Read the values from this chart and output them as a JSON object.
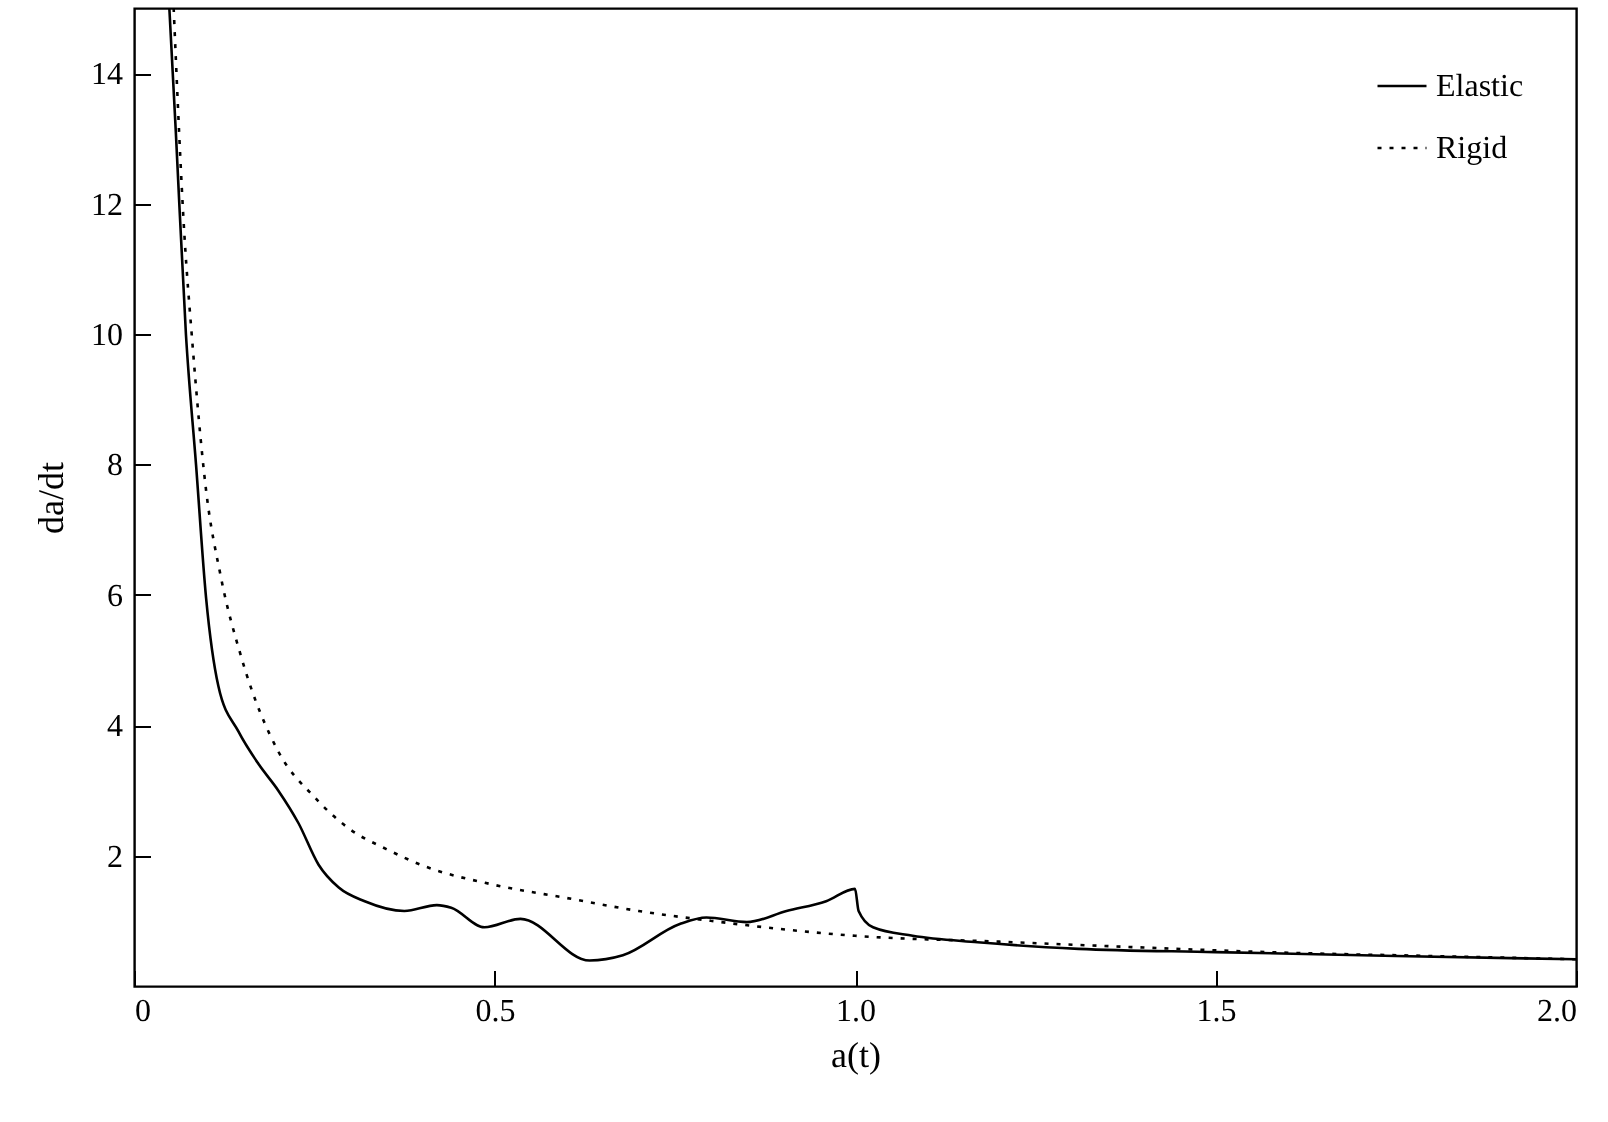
{
  "chart_data": {
    "type": "line",
    "xlabel": "a(t)",
    "ylabel": "da/dt",
    "xlim": [
      0,
      2
    ],
    "ylim": [
      0,
      15
    ],
    "xticks": [
      0,
      0.5,
      {
        "value": 1,
        "label": "1.0"
      },
      1.5,
      {
        "value": 2,
        "label": "2.0"
      }
    ],
    "yticks": [
      2,
      4,
      6,
      8,
      10,
      12,
      14
    ],
    "legend": "top right",
    "grid": false,
    "series": [
      {
        "name": "Elastic",
        "color": "#000000",
        "line_style": "solid",
        "x": [
          0.049,
          0.058,
          0.072,
          0.086,
          0.1,
          0.117,
          0.145,
          0.173,
          0.2,
          0.228,
          0.256,
          0.284,
          0.32,
          0.375,
          0.42,
          0.44,
          0.486,
          0.536,
          0.632,
          0.678,
          0.757,
          0.794,
          0.85,
          0.905,
          0.96,
          1.0,
          1.005,
          1.025,
          1.08,
          1.17,
          1.31,
          1.5,
          1.75,
          2.0
        ],
        "values": [
          15,
          13.1,
          10,
          8,
          5.95,
          4.6,
          3.9,
          3.4,
          3,
          2.5,
          1.86,
          1.51,
          1.3,
          1.15,
          1.24,
          1.2,
          0.9,
          1.03,
          0.39,
          0.47,
          0.95,
          1.05,
          0.98,
          1.15,
          1.3,
          1.49,
          1.15,
          0.9,
          0.77,
          0.67,
          0.57,
          0.52,
          0.46,
          0.41
        ]
      },
      {
        "name": "Rigid",
        "color": "#000000",
        "line_style": "dotted",
        "x": [
          0.055,
          0.07,
          0.08,
          0.1,
          0.12,
          0.15,
          0.2,
          0.25,
          0.3,
          0.35,
          0.4,
          0.5,
          0.6,
          0.7,
          0.8,
          0.9,
          1.0,
          1.2,
          1.4,
          1.6,
          1.8,
          2.0
        ],
        "values": [
          15,
          11.5,
          10,
          7.6,
          6.3,
          5,
          3.6,
          2.9,
          2.4,
          2.1,
          1.85,
          1.55,
          1.35,
          1.15,
          1,
          0.87,
          0.77,
          0.68,
          0.59,
          0.51,
          0.46,
          0.41
        ]
      }
    ]
  }
}
